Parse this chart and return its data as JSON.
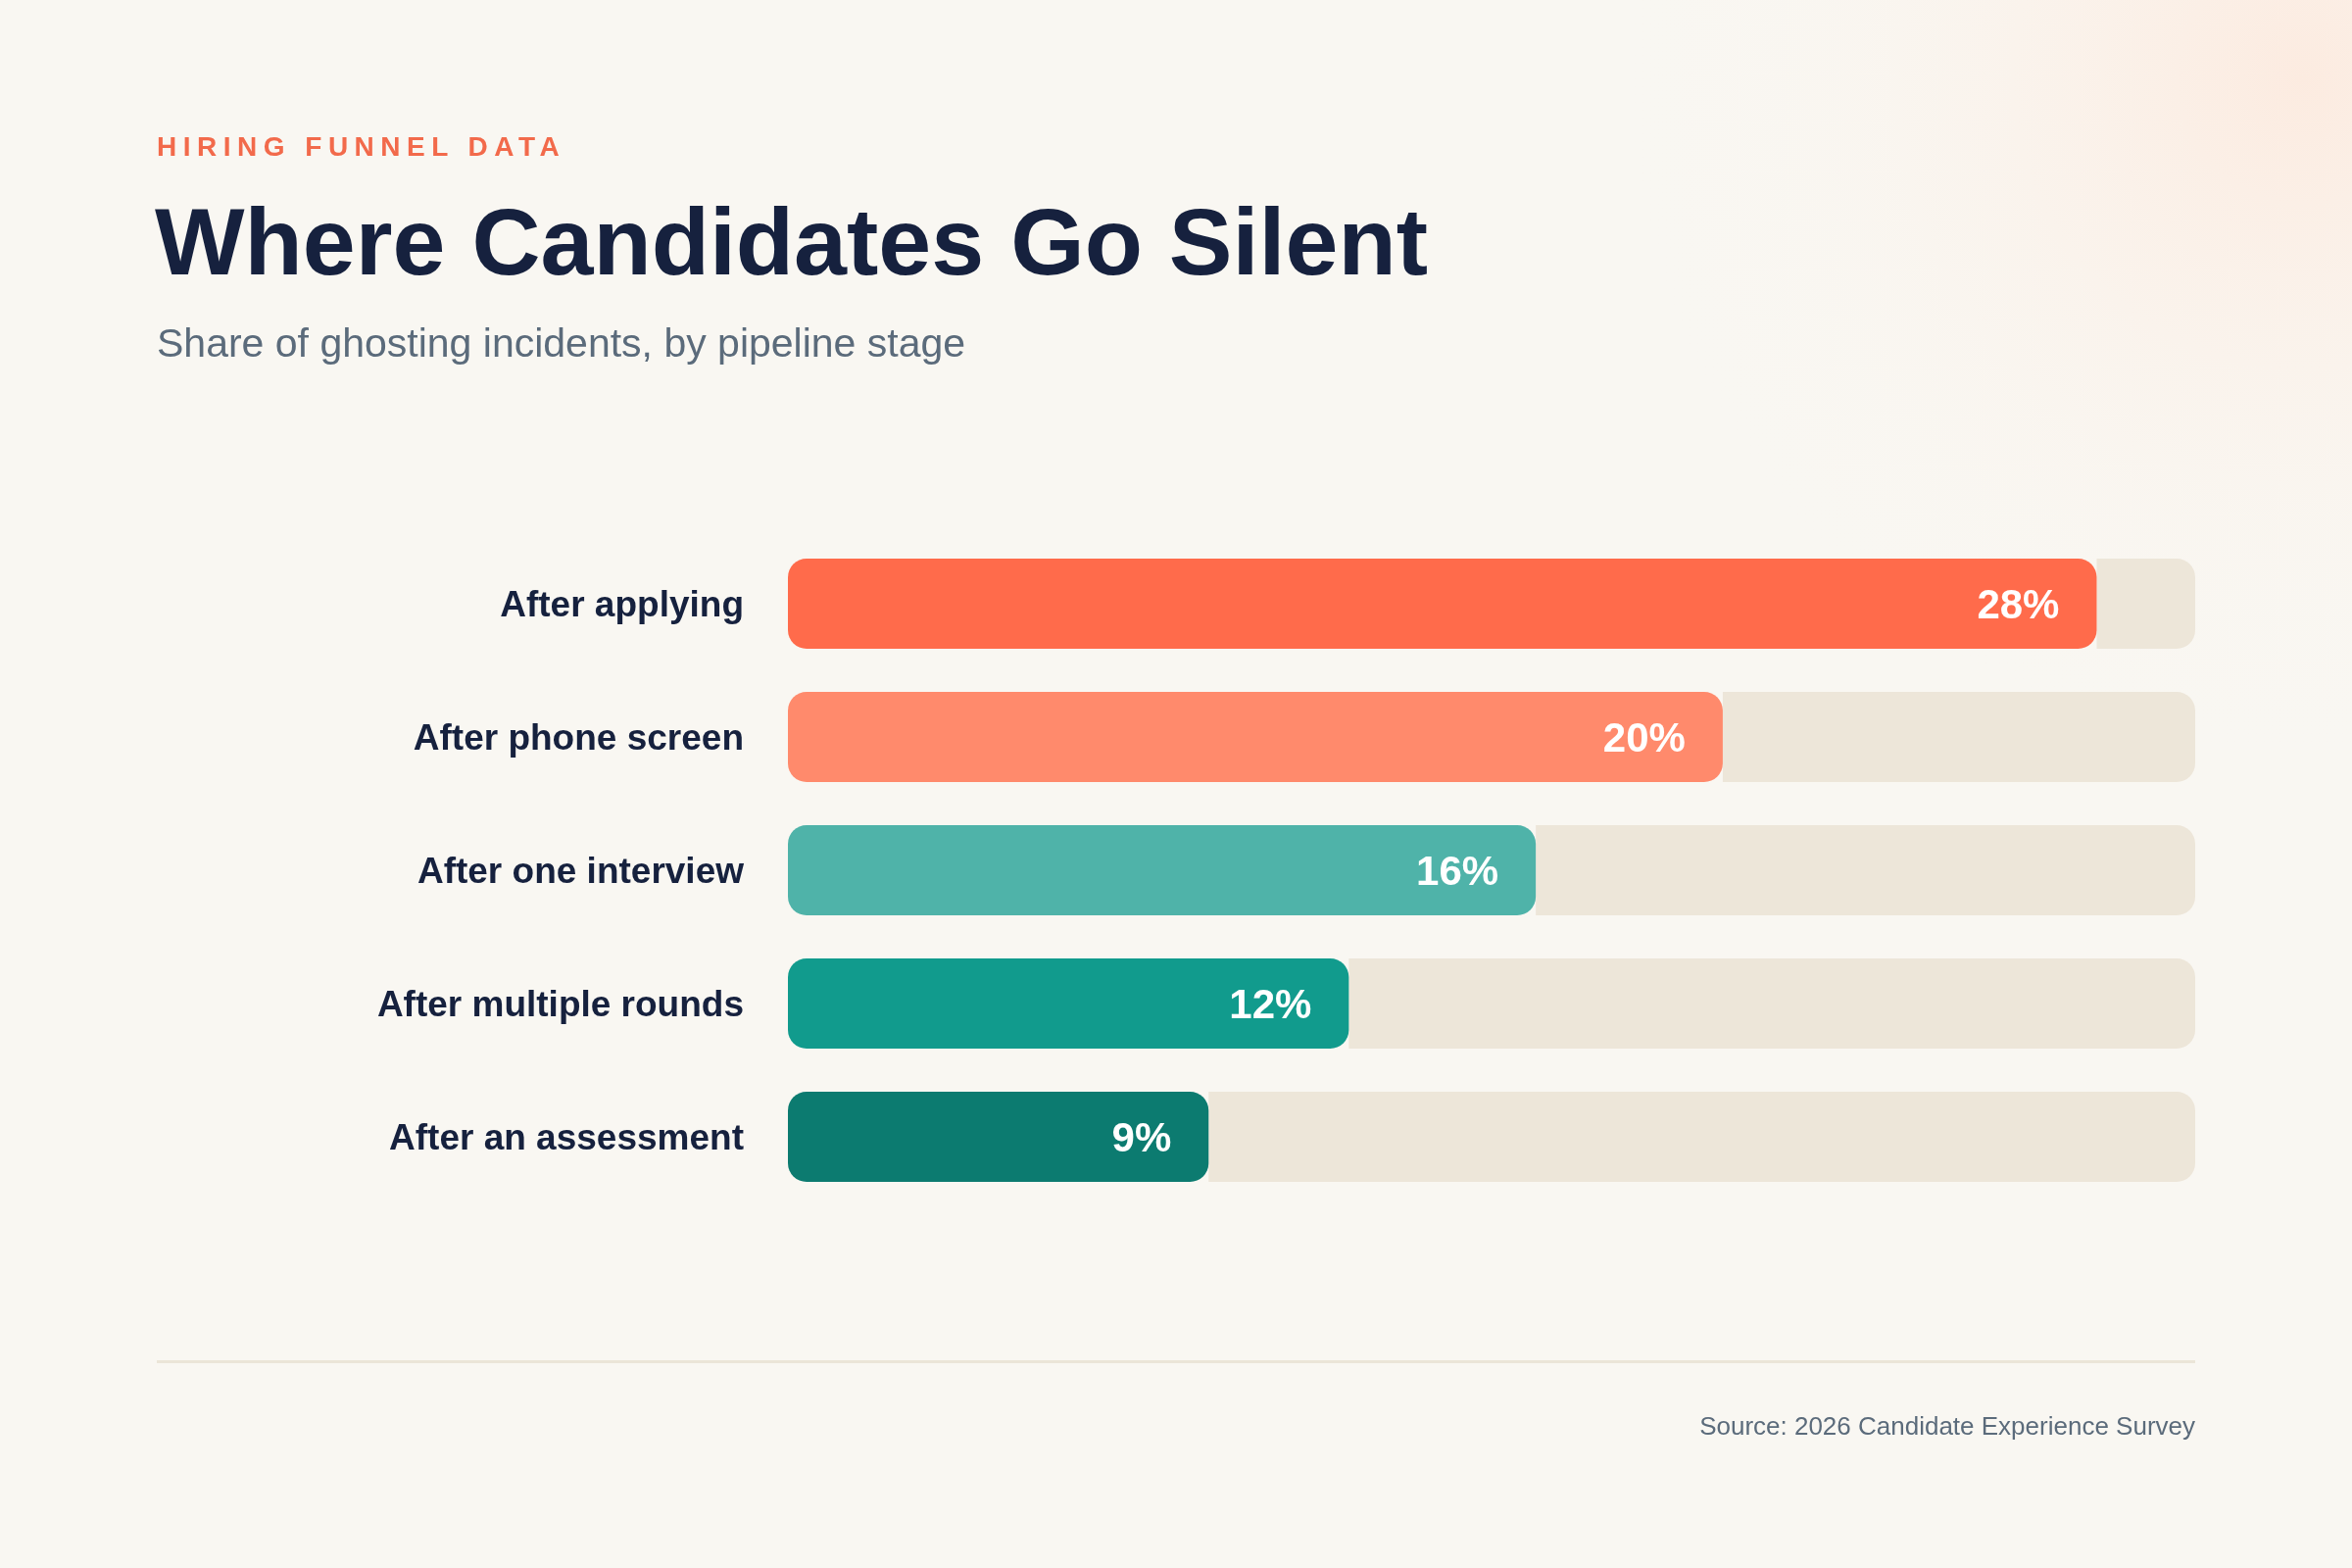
{
  "chart_data": {
    "type": "bar",
    "orientation": "horizontal",
    "title": "Where Candidates Go Silent",
    "subtitle": "Share of ghosting incidents, by pipeline stage",
    "annotations": [
      "HIRING FUNNEL DATA",
      "Source: 2026 Candidate Experience Survey"
    ],
    "categories": [
      "After applying",
      "After phone screen",
      "After one interview",
      "After multiple rounds",
      "After an assessment"
    ],
    "values": [
      28,
      20,
      16,
      12,
      9
    ],
    "colors": [
      "#ff6b4b",
      "#ff8a6c",
      "#4fb3a9",
      "#119b8d",
      "#0c7b70"
    ],
    "value_labels": [
      "28%",
      "20%",
      "16%",
      "12%",
      "9%"
    ],
    "tick_labels": "y"
  }
}
